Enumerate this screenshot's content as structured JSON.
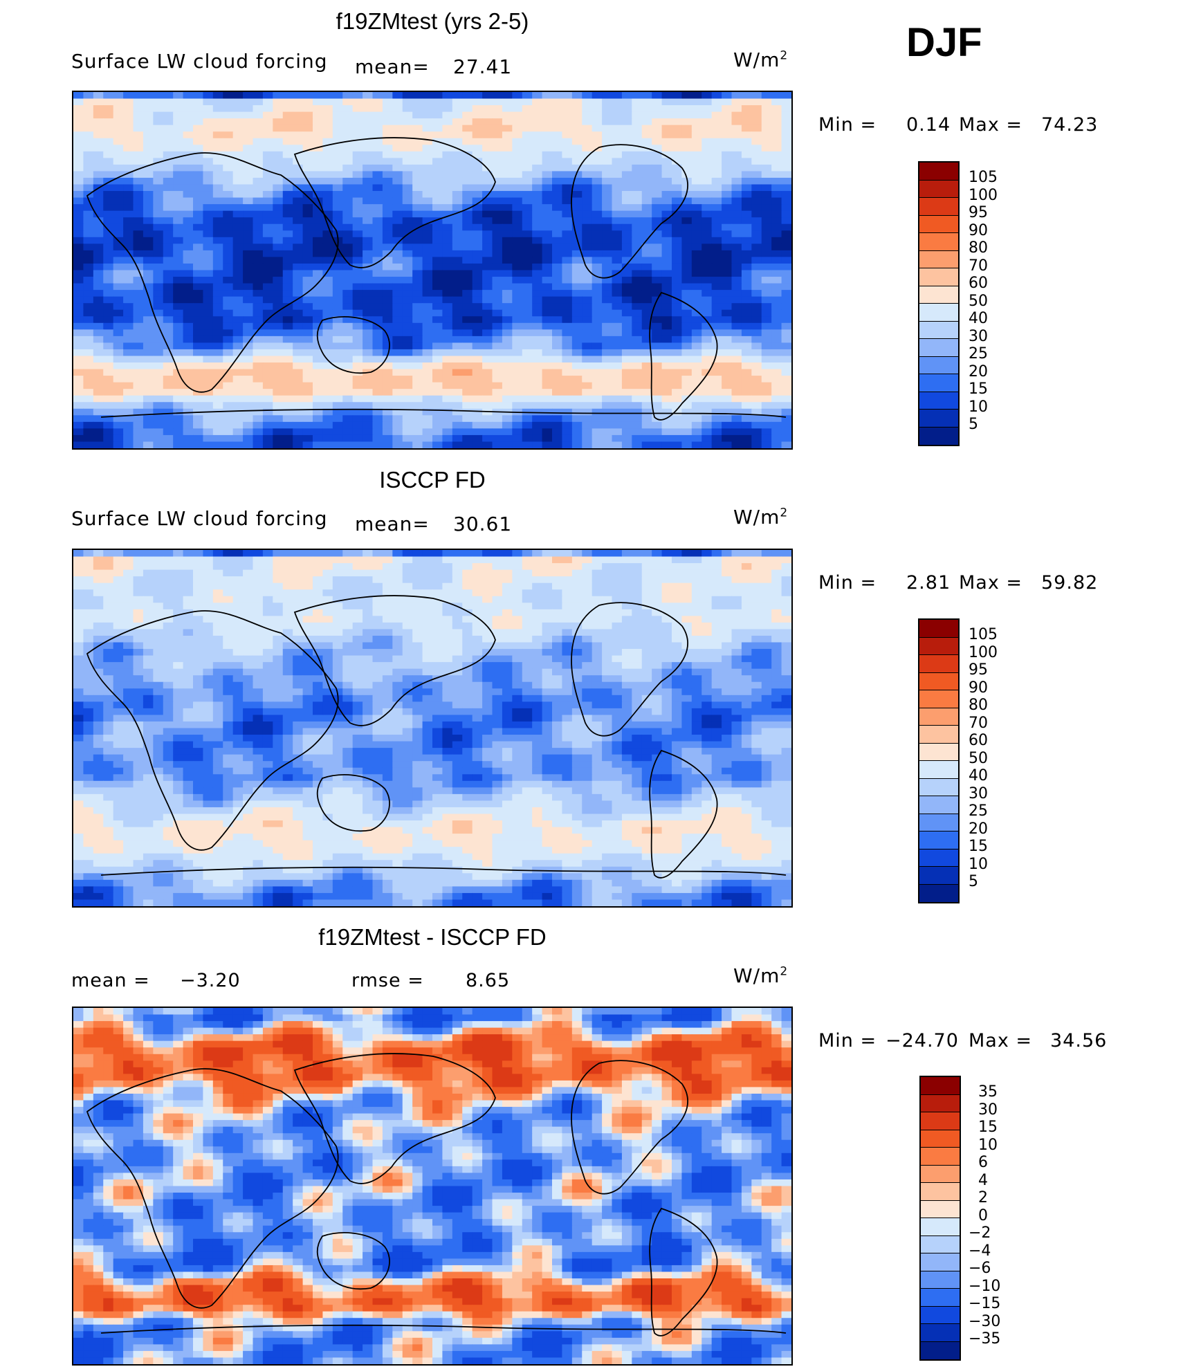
{
  "season": "DJF",
  "units_text": "W/m",
  "units_exp": "2",
  "panels": [
    {
      "title": "f19ZMtest (yrs 2-5)",
      "subtitle": "Surface LW cloud forcing",
      "mean_label": "mean=",
      "mean_value": "27.41",
      "min_label": "Min =",
      "min_value": "0.14",
      "max_label": "Max =",
      "max_value": "74.23"
    },
    {
      "title": "ISCCP FD",
      "subtitle": "Surface LW cloud forcing",
      "mean_label": "mean=",
      "mean_value": "30.61",
      "min_label": "Min =",
      "min_value": "2.81",
      "max_label": "Max =",
      "max_value": "59.82"
    },
    {
      "title": "f19ZMtest - ISCCP FD",
      "mean_label": "mean =",
      "mean_value": "−3.20",
      "rmse_label": "rmse =",
      "rmse_value": "8.65",
      "min_label": "Min =",
      "min_value": "−24.70",
      "max_label": "Max =",
      "max_value": "34.56"
    }
  ],
  "colorbars": {
    "field": {
      "labels": [
        "105",
        "100",
        "95",
        "90",
        "80",
        "70",
        "60",
        "50",
        "40",
        "30",
        "25",
        "20",
        "15",
        "10",
        "5"
      ],
      "colors": [
        "#8b0000",
        "#b81d0c",
        "#dc3a16",
        "#f05a23",
        "#fa7b42",
        "#fc9e6e",
        "#fdc3a0",
        "#fde4d2",
        "#d6e9fb",
        "#b6d2fb",
        "#92b6f9",
        "#6093f6",
        "#2e6ef2",
        "#1149df",
        "#0530b6",
        "#021e8a"
      ]
    },
    "diff": {
      "labels": [
        "35",
        "30",
        "15",
        "10",
        "6",
        "4",
        "2",
        "0",
        "−2",
        "−4",
        "−6",
        "−10",
        "−15",
        "−30",
        "−35"
      ],
      "colors": [
        "#8b0000",
        "#b81d0c",
        "#dc3a16",
        "#f05a23",
        "#fa7b42",
        "#fc9e6e",
        "#fdc3a0",
        "#fde4d2",
        "#d6e9fb",
        "#b6d2fb",
        "#92b6f9",
        "#6093f6",
        "#2e6ef2",
        "#1149df",
        "#0530b6",
        "#021e8a"
      ]
    }
  },
  "chart_data": [
    {
      "type": "heatmap",
      "title": "f19ZMtest (yrs 2-5)",
      "variable": "Surface LW cloud forcing",
      "units": "W/m2",
      "mean": 27.41,
      "min": 0.14,
      "max": 74.23,
      "levels": [
        5,
        10,
        15,
        20,
        25,
        30,
        40,
        50,
        60,
        70,
        80,
        90,
        95,
        100,
        105
      ],
      "zonal_mean_band_values": {
        "lat": [
          85,
          70,
          55,
          40,
          25,
          10,
          0,
          -10,
          -25,
          -40,
          -50,
          -60,
          -70,
          -85
        ],
        "value": [
          45,
          55,
          40,
          22,
          12,
          10,
          14,
          12,
          12,
          25,
          60,
          62,
          30,
          15
        ]
      }
    },
    {
      "type": "heatmap",
      "title": "ISCCP FD",
      "variable": "Surface LW cloud forcing",
      "units": "W/m2",
      "mean": 30.61,
      "min": 2.81,
      "max": 59.82,
      "levels": [
        5,
        10,
        15,
        20,
        25,
        30,
        40,
        50,
        60,
        70,
        80,
        90,
        95,
        100,
        105
      ],
      "zonal_mean_band_values": {
        "lat": [
          85,
          70,
          55,
          40,
          25,
          10,
          0,
          -10,
          -25,
          -40,
          -50,
          -60,
          -70,
          -85
        ],
        "value": [
          48,
          42,
          45,
          32,
          26,
          20,
          22,
          22,
          22,
          38,
          52,
          50,
          38,
          20
        ]
      }
    },
    {
      "type": "heatmap",
      "title": "f19ZMtest - ISCCP FD",
      "units": "W/m2",
      "mean": -3.2,
      "rmse": 8.65,
      "min": -24.7,
      "max": 34.56,
      "levels": [
        -35,
        -30,
        -15,
        -10,
        -6,
        -4,
        -2,
        0,
        2,
        4,
        6,
        10,
        15,
        30,
        35
      ],
      "zonal_mean_band_values": {
        "lat": [
          85,
          70,
          55,
          40,
          25,
          10,
          0,
          -10,
          -25,
          -40,
          -50,
          -60,
          -70,
          -85
        ],
        "value": [
          -10,
          12,
          10,
          -4,
          -6,
          -8,
          -6,
          -8,
          -8,
          -10,
          8,
          12,
          -6,
          -8
        ]
      }
    }
  ]
}
